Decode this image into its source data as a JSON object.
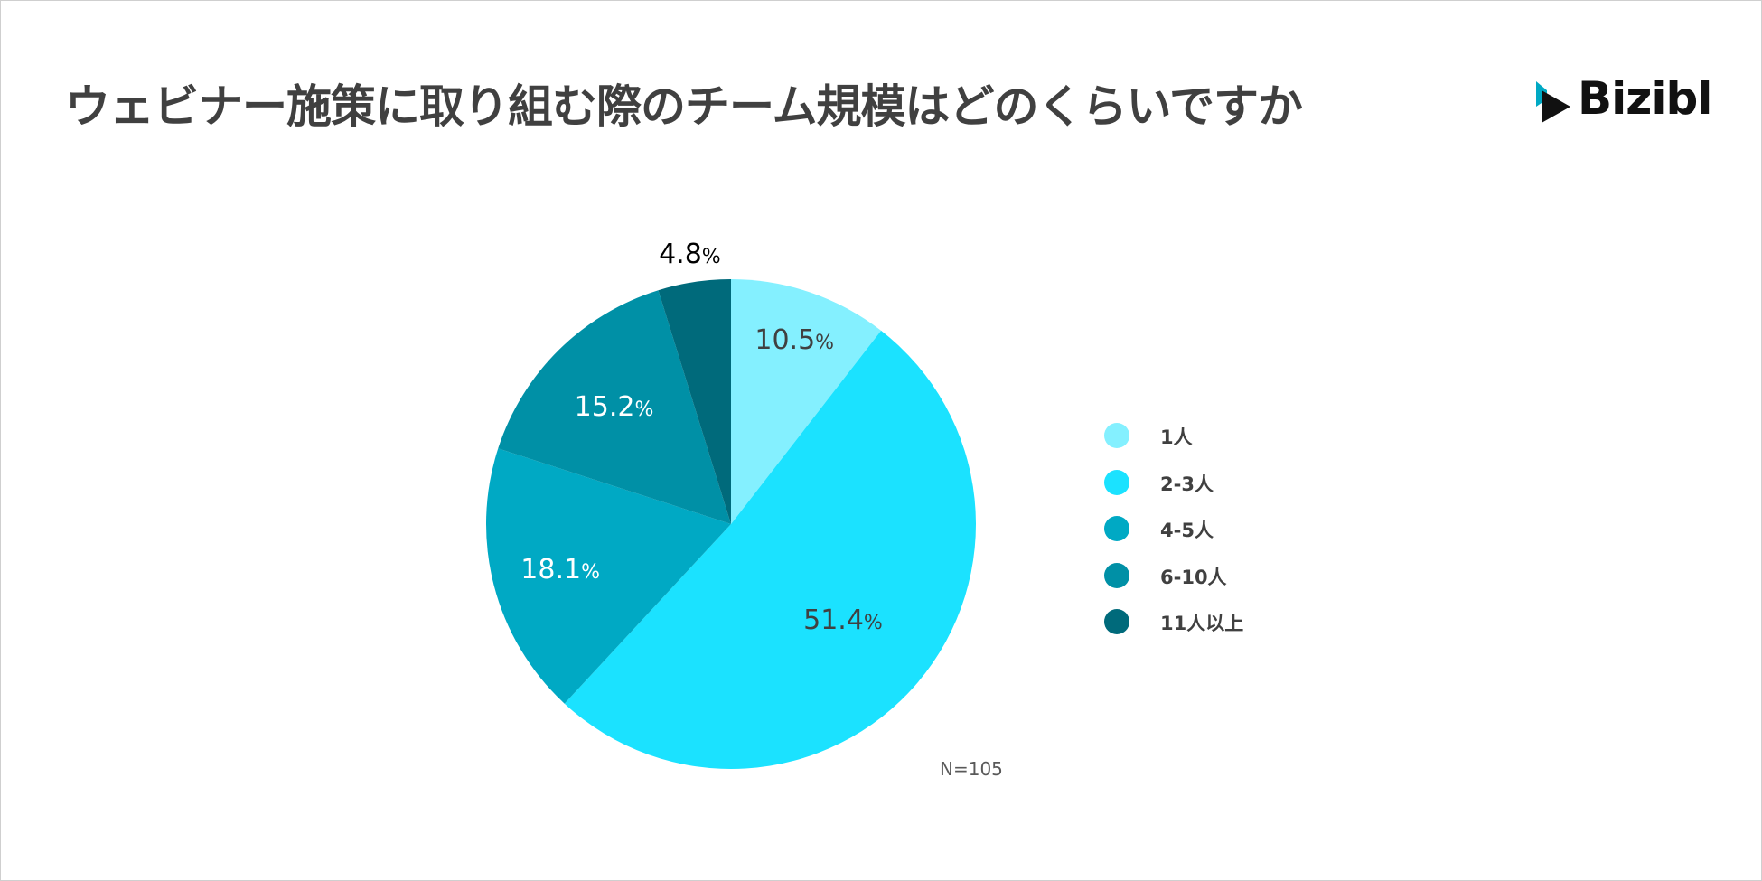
{
  "chart_data": {
    "type": "pie",
    "title": "ウェビナー施策に取り組む際のチーム規模はどのくらいですか",
    "categories": [
      "1人",
      "2-3人",
      "4-5人",
      "6-10人",
      "11人以上"
    ],
    "values": [
      10.5,
      51.4,
      18.1,
      15.2,
      4.8
    ],
    "colors": [
      "#84F0FF",
      "#1BE2FF",
      "#00A9C4",
      "#0090A6",
      "#006A7B"
    ],
    "label_colors": [
      "#404040",
      "#404040",
      "#ffffff",
      "#ffffff",
      "#000000"
    ],
    "unit": "%",
    "start_angle": "12 o'clock",
    "direction": "clockwise",
    "legend_position": "right",
    "note": "N=105"
  },
  "brand": {
    "name": "Bizibl"
  },
  "colors": {
    "title": "#404040",
    "accent_teal": "#00A9C4",
    "brand_dark": "#111111"
  }
}
